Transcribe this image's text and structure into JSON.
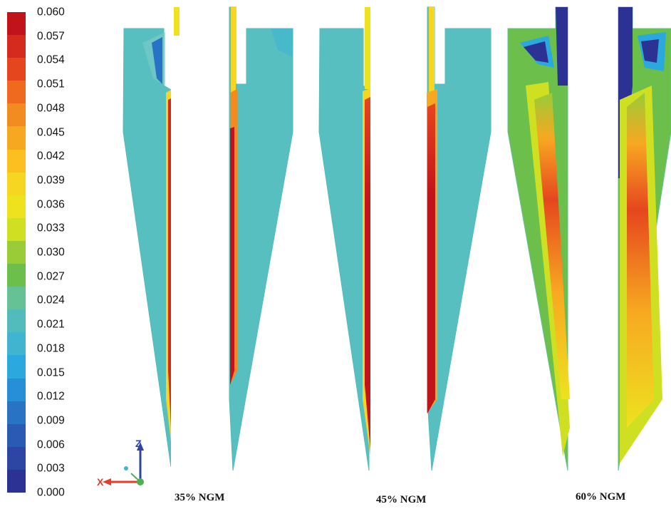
{
  "colorbar": {
    "ticks": [
      "0.060",
      "0.057",
      "0.054",
      "0.051",
      "0.048",
      "0.045",
      "0.042",
      "0.039",
      "0.036",
      "0.033",
      "0.030",
      "0.027",
      "0.024",
      "0.021",
      "0.018",
      "0.015",
      "0.012",
      "0.009",
      "0.006",
      "0.003",
      "0.000"
    ],
    "colors": [
      "#c1131a",
      "#d52b1f",
      "#e6461e",
      "#ef6a1f",
      "#f38c20",
      "#f7a821",
      "#fbc01f",
      "#f7d621",
      "#eee21f",
      "#cfe023",
      "#99cc37",
      "#6bbf4a",
      "#64c294",
      "#52bcbd",
      "#41b5d0",
      "#2ba8de",
      "#268fd8",
      "#2873c4",
      "#2a5bb3",
      "#2d45a3",
      "#2b3294"
    ]
  },
  "axes_triad": {
    "z": "Z",
    "x": "X"
  },
  "cases": [
    {
      "label": "35% NGM"
    },
    {
      "label": "45% NGM"
    },
    {
      "label": "60% NGM"
    }
  ]
}
